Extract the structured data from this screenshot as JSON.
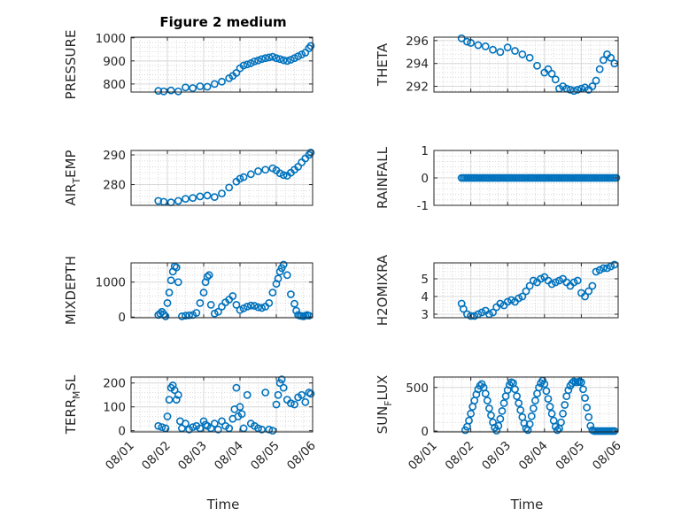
{
  "figure": {
    "title": "Figure 2 medium",
    "xlabel": "Time"
  },
  "chart_data": [
    {
      "type": "scatter",
      "ylabel": "PRESSURE",
      "ylim": [
        765,
        1003
      ],
      "yticks": [
        800,
        900,
        1000
      ],
      "x": [
        1.75,
        1.9,
        2.1,
        2.3,
        2.5,
        2.7,
        2.9,
        3.1,
        3.3,
        3.5,
        3.7,
        3.8,
        3.9,
        4.0,
        4.1,
        4.2,
        4.3,
        4.4,
        4.5,
        4.6,
        4.7,
        4.8,
        4.9,
        5.0,
        5.1,
        5.2,
        5.3,
        5.4,
        5.5,
        5.6,
        5.7,
        5.8,
        5.9,
        5.95
      ],
      "y": [
        770,
        768,
        772,
        768,
        785,
        782,
        790,
        788,
        800,
        810,
        825,
        835,
        848,
        868,
        880,
        885,
        890,
        898,
        902,
        908,
        912,
        915,
        918,
        912,
        908,
        903,
        900,
        905,
        912,
        920,
        928,
        936,
        955,
        965
      ]
    },
    {
      "type": "scatter",
      "ylabel": "THETA",
      "ylim": [
        291.5,
        296.3
      ],
      "yticks": [
        292,
        294,
        296
      ],
      "x": [
        1.75,
        1.9,
        2.0,
        2.2,
        2.4,
        2.6,
        2.8,
        3.0,
        3.2,
        3.4,
        3.6,
        3.8,
        4.0,
        4.1,
        4.2,
        4.3,
        4.4,
        4.5,
        4.6,
        4.7,
        4.8,
        4.9,
        5.0,
        5.1,
        5.2,
        5.3,
        5.4,
        5.5,
        5.6,
        5.7,
        5.8,
        5.9
      ],
      "y": [
        296.2,
        295.9,
        295.8,
        295.6,
        295.5,
        295.2,
        295.0,
        295.4,
        295.1,
        294.8,
        294.5,
        293.8,
        293.2,
        293.5,
        293.1,
        292.6,
        291.8,
        292.0,
        291.8,
        291.7,
        291.6,
        291.7,
        291.8,
        291.9,
        291.7,
        292.0,
        292.5,
        293.5,
        294.3,
        294.8,
        294.5,
        294.0
      ]
    },
    {
      "type": "scatter",
      "ylabel": "AIR_TEMP",
      "ylim": [
        273,
        291.5
      ],
      "yticks": [
        280,
        290
      ],
      "x": [
        1.75,
        1.9,
        2.1,
        2.3,
        2.5,
        2.7,
        2.9,
        3.1,
        3.3,
        3.5,
        3.7,
        3.9,
        4.0,
        4.1,
        4.3,
        4.5,
        4.7,
        4.9,
        5.0,
        5.1,
        5.2,
        5.3,
        5.4,
        5.5,
        5.6,
        5.7,
        5.8,
        5.9,
        5.95
      ],
      "y": [
        274.5,
        274.2,
        274.0,
        274.5,
        275.2,
        275.5,
        276,
        276.3,
        275.8,
        277,
        279,
        281,
        282,
        282.5,
        283.5,
        284.5,
        285,
        285.5,
        284.8,
        283.8,
        283.2,
        283.0,
        284.0,
        285.0,
        286.0,
        287.5,
        288.8,
        290.0,
        290.8
      ]
    },
    {
      "type": "scatter",
      "ylabel": "RAINFALL",
      "ylim": [
        -1,
        1
      ],
      "yticks": [
        -1,
        0,
        1
      ],
      "x_from": 1.75,
      "x_to": 5.95,
      "x_step": 0.05,
      "constant_y": 0
    },
    {
      "type": "scatter",
      "ylabel": "MIXDEPTH",
      "ylim": [
        -20,
        1550
      ],
      "yticks": [
        0,
        1000
      ],
      "x": [
        1.75,
        1.8,
        1.85,
        1.9,
        1.95,
        2.0,
        2.05,
        2.1,
        2.15,
        2.2,
        2.25,
        2.3,
        2.4,
        2.5,
        2.6,
        2.7,
        2.8,
        2.9,
        3.0,
        3.05,
        3.1,
        3.15,
        3.2,
        3.3,
        3.4,
        3.5,
        3.6,
        3.7,
        3.8,
        3.9,
        4.0,
        4.1,
        4.2,
        4.3,
        4.4,
        4.5,
        4.6,
        4.7,
        4.8,
        4.9,
        5.0,
        5.05,
        5.1,
        5.15,
        5.2,
        5.3,
        5.4,
        5.5,
        5.55,
        5.6,
        5.65,
        5.7,
        5.75,
        5.8,
        5.85,
        5.9
      ],
      "y": [
        60,
        100,
        150,
        80,
        20,
        400,
        700,
        1050,
        1300,
        1450,
        1420,
        1000,
        20,
        40,
        50,
        60,
        120,
        400,
        700,
        1000,
        1150,
        1200,
        350,
        100,
        150,
        300,
        420,
        500,
        600,
        350,
        200,
        250,
        300,
        330,
        320,
        280,
        260,
        300,
        400,
        700,
        950,
        1100,
        1300,
        1400,
        1500,
        1200,
        650,
        380,
        180,
        60,
        40,
        30,
        20,
        40,
        60,
        40
      ]
    },
    {
      "type": "scatter",
      "ylabel": "H2OMIXRA",
      "ylim": [
        2.8,
        5.9
      ],
      "yticks": [
        3,
        4,
        5
      ],
      "x": [
        1.75,
        1.8,
        1.9,
        2.0,
        2.1,
        2.2,
        2.3,
        2.4,
        2.5,
        2.6,
        2.7,
        2.8,
        2.9,
        3.0,
        3.1,
        3.2,
        3.3,
        3.4,
        3.5,
        3.6,
        3.7,
        3.8,
        3.9,
        4.0,
        4.1,
        4.2,
        4.3,
        4.4,
        4.5,
        4.6,
        4.7,
        4.8,
        4.9,
        5.0,
        5.1,
        5.2,
        5.3,
        5.4,
        5.5,
        5.6,
        5.7,
        5.8,
        5.9
      ],
      "y": [
        3.6,
        3.3,
        3.0,
        2.9,
        2.9,
        3.0,
        3.1,
        3.2,
        3.0,
        3.1,
        3.4,
        3.6,
        3.5,
        3.7,
        3.8,
        3.7,
        3.9,
        4.0,
        4.3,
        4.6,
        4.9,
        4.8,
        5.0,
        5.1,
        4.9,
        4.7,
        4.8,
        4.9,
        5.0,
        4.8,
        4.6,
        4.8,
        4.9,
        4.2,
        4.0,
        4.3,
        4.6,
        5.4,
        5.5,
        5.6,
        5.6,
        5.7,
        5.8
      ]
    },
    {
      "type": "scatter",
      "ylabel": "TERR_MSL",
      "ylim": [
        -5,
        225
      ],
      "yticks": [
        0,
        100,
        200
      ],
      "x": [
        1.75,
        1.85,
        1.95,
        2.0,
        2.05,
        2.1,
        2.15,
        2.2,
        2.25,
        2.3,
        2.35,
        2.4,
        2.5,
        2.6,
        2.7,
        2.8,
        2.9,
        3.0,
        3.05,
        3.1,
        3.2,
        3.3,
        3.4,
        3.5,
        3.6,
        3.7,
        3.8,
        3.85,
        3.9,
        3.95,
        4.0,
        4.05,
        4.1,
        4.2,
        4.3,
        4.4,
        4.5,
        4.6,
        4.7,
        4.8,
        4.9,
        5.0,
        5.05,
        5.1,
        5.15,
        5.2,
        5.3,
        5.4,
        5.5,
        5.6,
        5.7,
        5.8,
        5.9,
        5.95
      ],
      "y": [
        20,
        15,
        10,
        60,
        130,
        180,
        190,
        170,
        130,
        150,
        40,
        10,
        30,
        5,
        15,
        20,
        10,
        40,
        25,
        20,
        10,
        30,
        5,
        40,
        20,
        10,
        50,
        90,
        180,
        60,
        100,
        70,
        10,
        150,
        30,
        20,
        10,
        5,
        160,
        5,
        0,
        110,
        150,
        200,
        215,
        180,
        130,
        115,
        110,
        140,
        150,
        120,
        160,
        155
      ]
    },
    {
      "type": "scatter",
      "ylabel": "SUN_FLUX",
      "ylim": [
        -10,
        620
      ],
      "yticks": [
        0,
        500
      ],
      "x": [
        1.85,
        1.9,
        1.95,
        2.0,
        2.05,
        2.1,
        2.15,
        2.2,
        2.25,
        2.3,
        2.35,
        2.4,
        2.45,
        2.5,
        2.55,
        2.6,
        2.65,
        2.7,
        2.75,
        2.8,
        2.85,
        2.9,
        2.95,
        3.0,
        3.05,
        3.1,
        3.15,
        3.2,
        3.25,
        3.3,
        3.35,
        3.4,
        3.45,
        3.5,
        3.55,
        3.6,
        3.65,
        3.7,
        3.75,
        3.8,
        3.85,
        3.9,
        3.95,
        4.0,
        4.05,
        4.1,
        4.15,
        4.2,
        4.25,
        4.3,
        4.35,
        4.4,
        4.45,
        4.5,
        4.55,
        4.6,
        4.65,
        4.7,
        4.75,
        4.8,
        4.85,
        4.9,
        4.95,
        5.0,
        5.05,
        5.1,
        5.15,
        5.2,
        5.25,
        5.3,
        5.35,
        5.4,
        5.45,
        5.5,
        5.55,
        5.6,
        5.65,
        5.7,
        5.75,
        5.8,
        5.85,
        5.9
      ],
      "y": [
        10,
        50,
        120,
        200,
        280,
        350,
        420,
        480,
        520,
        540,
        500,
        430,
        350,
        260,
        180,
        100,
        40,
        5,
        60,
        140,
        230,
        320,
        400,
        470,
        530,
        560,
        550,
        480,
        400,
        320,
        240,
        160,
        90,
        30,
        10,
        80,
        170,
        260,
        350,
        430,
        500,
        550,
        580,
        540,
        460,
        370,
        280,
        200,
        120,
        50,
        10,
        30,
        100,
        200,
        300,
        400,
        470,
        520,
        550,
        570,
        560,
        560,
        570,
        560,
        480,
        380,
        270,
        160,
        60,
        10,
        0,
        0,
        0,
        0,
        0,
        0,
        0,
        0,
        0,
        0,
        0,
        0
      ]
    }
  ]
}
